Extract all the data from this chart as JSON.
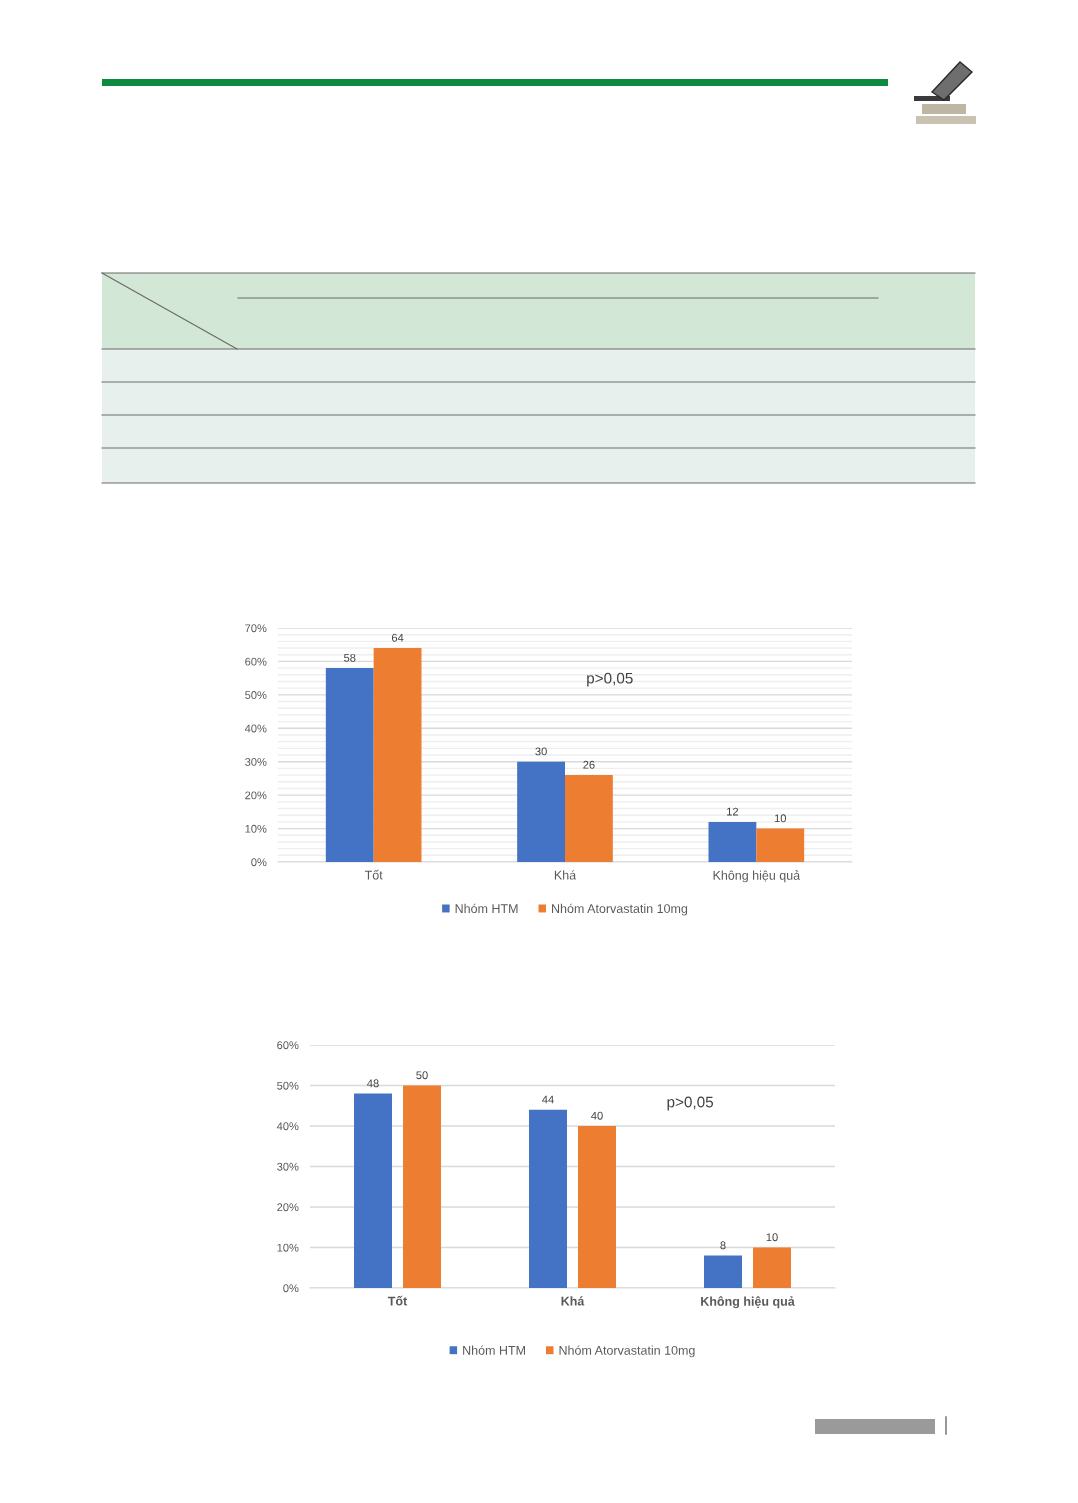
{
  "chart_data": [
    {
      "type": "bar",
      "categories": [
        "Tốt",
        "Khá",
        "Không hiệu quả"
      ],
      "series": [
        {
          "name": "Nhóm HTM",
          "color": "#4472c4",
          "values": [
            58,
            30,
            12
          ]
        },
        {
          "name": "Nhóm Atorvastatin 10mg",
          "color": "#ed7d31",
          "values": [
            64,
            26,
            10
          ]
        }
      ],
      "ylim": [
        0,
        70
      ],
      "yticks": [
        {
          "value": 0,
          "label": "0%"
        },
        {
          "value": 2,
          "label": null
        },
        {
          "value": 4,
          "label": null
        },
        {
          "value": 6,
          "label": null
        },
        {
          "value": 8,
          "label": null
        },
        {
          "value": 10,
          "label": "10%"
        },
        {
          "value": 12,
          "label": null
        },
        {
          "value": 14,
          "label": null
        },
        {
          "value": 16,
          "label": null
        },
        {
          "value": 18,
          "label": null
        },
        {
          "value": 20,
          "label": "20%"
        },
        {
          "value": 22,
          "label": null
        },
        {
          "value": 24,
          "label": null
        },
        {
          "value": 26,
          "label": null
        },
        {
          "value": 28,
          "label": null
        },
        {
          "value": 30,
          "label": "30%"
        },
        {
          "value": 32,
          "label": null
        },
        {
          "value": 34,
          "label": null
        },
        {
          "value": 36,
          "label": null
        },
        {
          "value": 38,
          "label": null
        },
        {
          "value": 40,
          "label": "40%"
        },
        {
          "value": 42,
          "label": null
        },
        {
          "value": 44,
          "label": null
        },
        {
          "value": 46,
          "label": null
        },
        {
          "value": 48,
          "label": null
        },
        {
          "value": 50,
          "label": "50%"
        },
        {
          "value": 52,
          "label": null
        },
        {
          "value": 54,
          "label": null
        },
        {
          "value": 56,
          "label": null
        },
        {
          "value": 58,
          "label": null
        },
        {
          "value": 60,
          "label": "60%"
        },
        {
          "value": 62,
          "label": null
        },
        {
          "value": 64,
          "label": null
        },
        {
          "value": 66,
          "label": null
        },
        {
          "value": 68,
          "label": null
        },
        {
          "value": 70,
          "label": "70%"
        }
      ],
      "grid": "y",
      "legend": "bottom",
      "data_labels": true,
      "annotations": [
        "p>0,05"
      ]
    },
    {
      "type": "bar",
      "categories": [
        "Tốt",
        "Khá",
        "Không hiệu quả"
      ],
      "series": [
        {
          "name": "Nhóm HTM",
          "color": "#4472c4",
          "values": [
            48,
            44,
            8
          ]
        },
        {
          "name": "Nhóm Atorvastatin 10mg",
          "color": "#ed7d31",
          "values": [
            50,
            40,
            10
          ]
        }
      ],
      "ylim": [
        0,
        60
      ],
      "yticks": [
        {
          "value": 0,
          "label": "0%"
        },
        {
          "value": 10,
          "label": "10%"
        },
        {
          "value": 20,
          "label": "20%"
        },
        {
          "value": 30,
          "label": "30%"
        },
        {
          "value": 40,
          "label": "40%"
        },
        {
          "value": 50,
          "label": "50%"
        },
        {
          "value": 60,
          "label": "60%"
        }
      ],
      "grid": "y",
      "legend": "bottom",
      "data_labels": true,
      "annotations": [
        "p>0,05"
      ]
    }
  ]
}
